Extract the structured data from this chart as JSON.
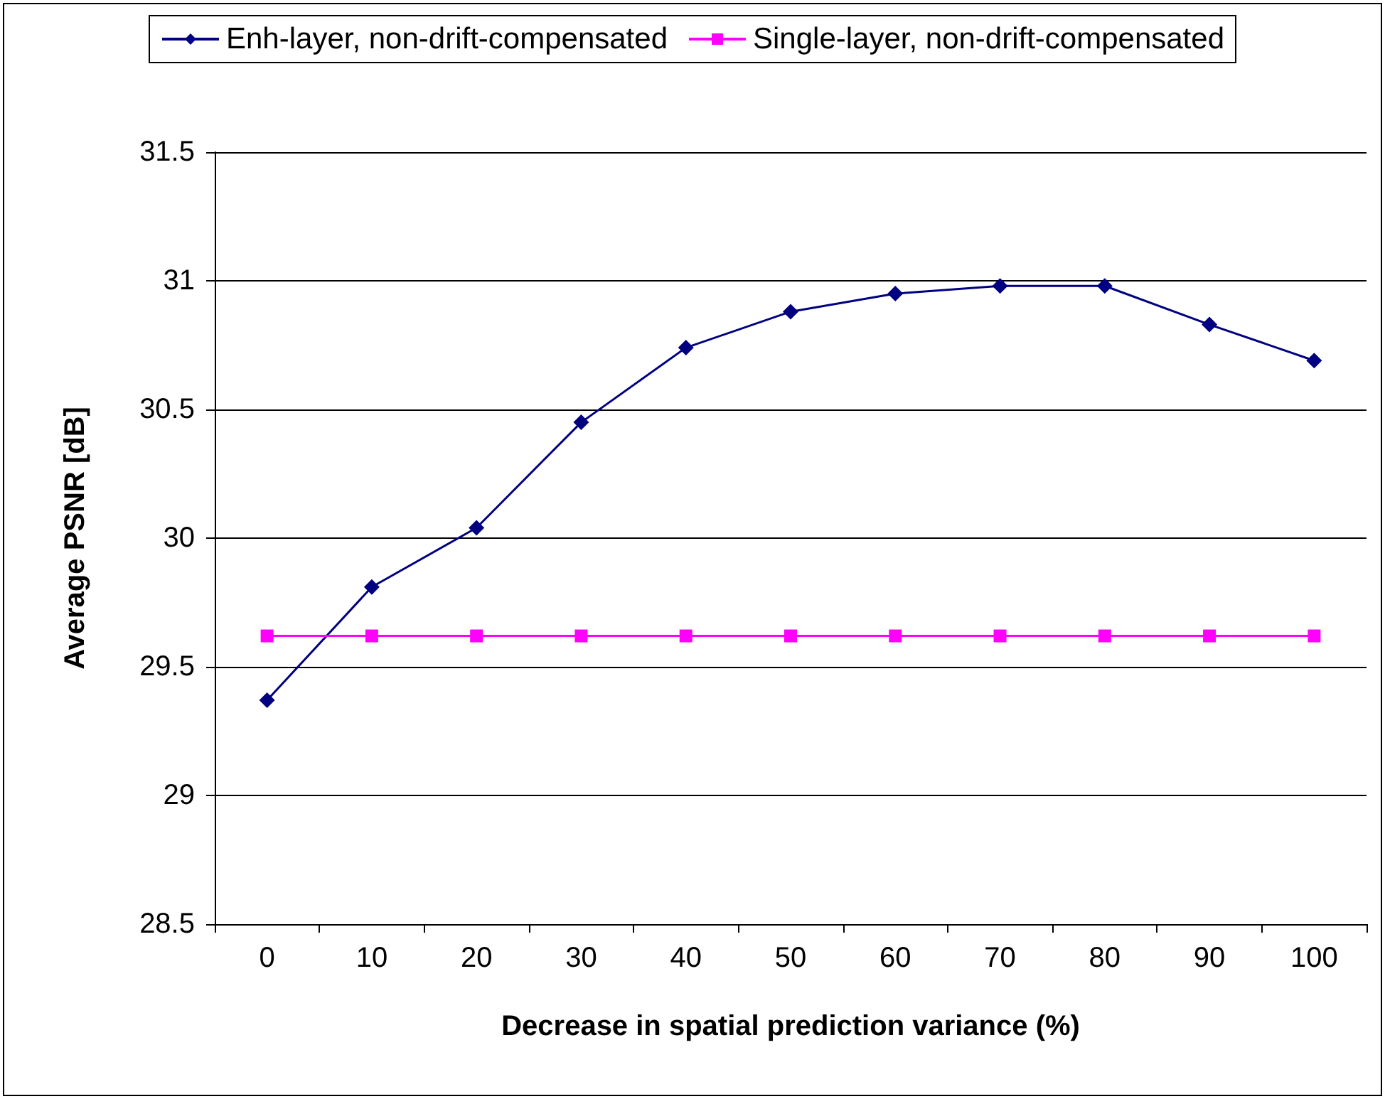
{
  "chart_data": {
    "type": "line",
    "xlabel": "Decrease in spatial prediction variance (%)",
    "ylabel": "Average PSNR [dB]",
    "categories": [
      "0",
      "10",
      "20",
      "30",
      "40",
      "50",
      "60",
      "70",
      "80",
      "90",
      "100"
    ],
    "series": [
      {
        "name": "Enh-layer, non-drift-compensated",
        "color": "#000080",
        "marker": "diamond",
        "values": [
          29.37,
          29.81,
          30.04,
          30.45,
          30.74,
          30.88,
          30.95,
          30.98,
          30.98,
          30.83,
          30.69
        ]
      },
      {
        "name": "Single-layer, non-drift-compensated",
        "color": "#ff00ff",
        "marker": "square",
        "values": [
          29.62,
          29.62,
          29.62,
          29.62,
          29.62,
          29.62,
          29.62,
          29.62,
          29.62,
          29.62,
          29.62
        ]
      }
    ],
    "ylim": [
      28.5,
      31.5
    ],
    "yticks": [
      28.5,
      29,
      29.5,
      30,
      30.5,
      31,
      31.5
    ],
    "grid": "y",
    "legend": "top",
    "line_style": "solid"
  }
}
